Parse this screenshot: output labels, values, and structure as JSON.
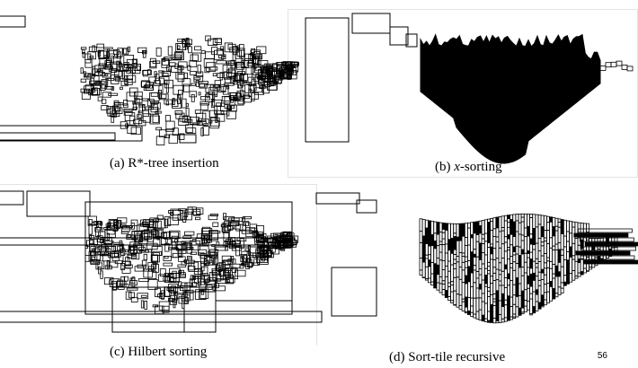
{
  "figure": {
    "panels": [
      {
        "id": "a",
        "caption_label": "(a) ",
        "caption_text": "R*-tree insertion"
      },
      {
        "id": "b",
        "caption_label": "(b) ",
        "caption_italic": "x",
        "caption_text": "-sorting"
      },
      {
        "id": "c",
        "caption_label": "(c) ",
        "caption_text": "Hilbert sorting"
      },
      {
        "id": "d",
        "caption_label": "(d) ",
        "caption_text": "Sort-tile recursive"
      }
    ]
  },
  "slide": {
    "page_number": "56"
  },
  "colors": {
    "ink": "#000000",
    "background": "#ffffff",
    "frame": "#e3e3e3"
  }
}
